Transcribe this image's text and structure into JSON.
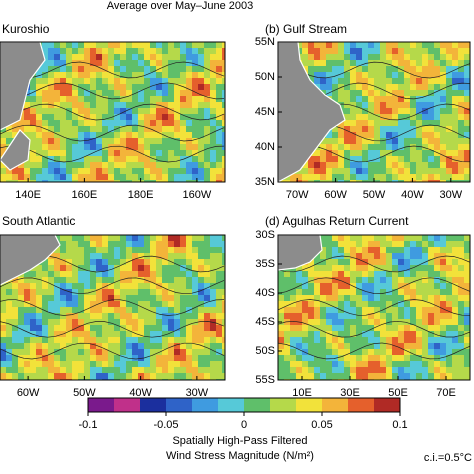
{
  "title": "Average over May–June 2003",
  "panels": [
    {
      "title": "Kuroshio",
      "xticks": [
        "140E",
        "160E",
        "180E",
        "160W"
      ],
      "yticks": []
    },
    {
      "title": "(b) Gulf Stream",
      "xticks": [
        "70W",
        "60W",
        "50W",
        "40W",
        "30W"
      ],
      "yticks": [
        "55N",
        "50N",
        "45N",
        "40N",
        "35N"
      ]
    },
    {
      "title": "South Atlantic",
      "xticks": [
        "60W",
        "50W",
        "40W",
        "30W"
      ],
      "yticks": []
    },
    {
      "title": "(d) Agulhas Return Current",
      "xticks": [
        "10E",
        "30E",
        "50E",
        "70E"
      ],
      "yticks": [
        "30S",
        "35S",
        "40S",
        "45S",
        "50S",
        "55S"
      ]
    }
  ],
  "colorbar": {
    "lim": [
      -0.1,
      0.1
    ],
    "ticks": [
      -0.1,
      -0.05,
      0,
      0.05,
      0.1
    ],
    "colors": [
      "#7a1a8c",
      "#c0308a",
      "#1b2f9e",
      "#2f63c8",
      "#3f9be0",
      "#56c9d8",
      "#5fbf6a",
      "#b5d94a",
      "#f2e23a",
      "#f3b43a",
      "#e5602c",
      "#b02a25"
    ],
    "label_lines": [
      "Spatially High-Pass Filtered",
      "Wind Stress Magnitude (N/m²)"
    ]
  },
  "contour_interval": "c.i.=0.5°C"
}
